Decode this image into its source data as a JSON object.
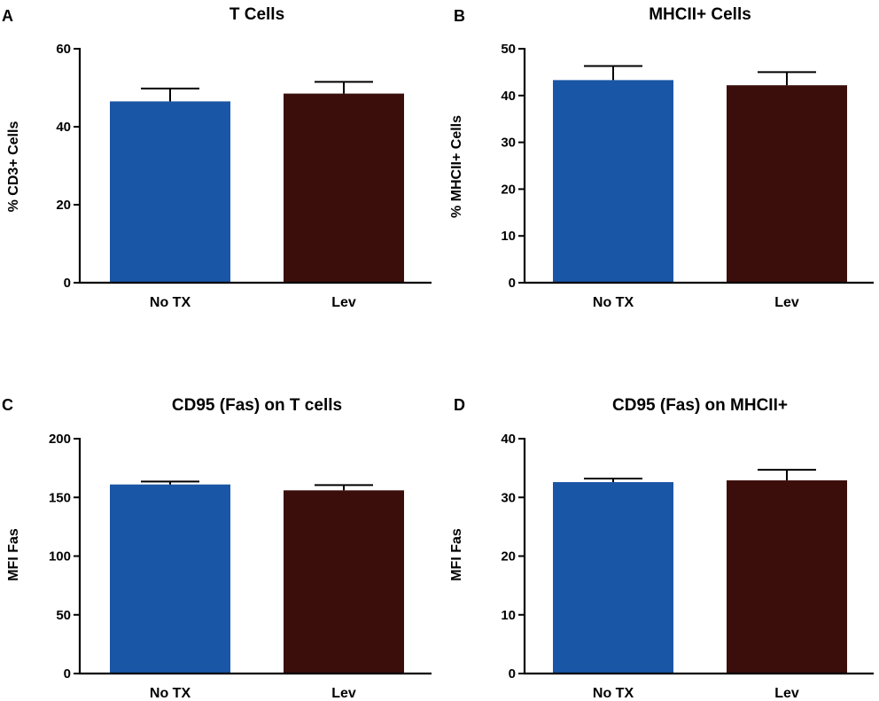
{
  "chart_data": [
    {
      "type": "bar",
      "panel": "A",
      "title": "T Cells",
      "ylabel": "% CD3+ Cells",
      "xlabel": "",
      "categories": [
        "No TX",
        "Lev"
      ],
      "values": [
        46.5,
        48.5
      ],
      "errors": [
        3.3,
        3.0
      ],
      "ylim": [
        0,
        60
      ],
      "yticks": [
        0,
        20,
        40,
        60
      ],
      "colors": [
        "#1a56a6",
        "#3b0e0c"
      ]
    },
    {
      "type": "bar",
      "panel": "B",
      "title": "MHCII+ Cells",
      "ylabel": "% MHCII+ Cells",
      "xlabel": "",
      "categories": [
        "No TX",
        "Lev"
      ],
      "values": [
        43.3,
        42.2
      ],
      "errors": [
        3.0,
        2.8
      ],
      "ylim": [
        0,
        50
      ],
      "yticks": [
        0,
        10,
        20,
        30,
        40,
        50
      ],
      "colors": [
        "#1a56a6",
        "#3b0e0c"
      ]
    },
    {
      "type": "bar",
      "panel": "C",
      "title": "CD95 (Fas) on T cells",
      "ylabel": "MFI Fas",
      "xlabel": "",
      "categories": [
        "No TX",
        "Lev"
      ],
      "values": [
        161,
        156
      ],
      "errors": [
        2.5,
        4.5
      ],
      "ylim": [
        0,
        200
      ],
      "yticks": [
        0,
        50,
        100,
        150,
        200
      ],
      "colors": [
        "#1a56a6",
        "#3b0e0c"
      ]
    },
    {
      "type": "bar",
      "panel": "D",
      "title": "CD95  (Fas) on MHCII+",
      "ylabel": "MFI Fas",
      "xlabel": "",
      "categories": [
        "No TX",
        "Lev"
      ],
      "values": [
        32.6,
        32.9
      ],
      "errors": [
        0.6,
        1.8
      ],
      "ylim": [
        0,
        40
      ],
      "yticks": [
        0,
        10,
        20,
        30,
        40
      ],
      "colors": [
        "#1a56a6",
        "#3b0e0c"
      ]
    }
  ]
}
